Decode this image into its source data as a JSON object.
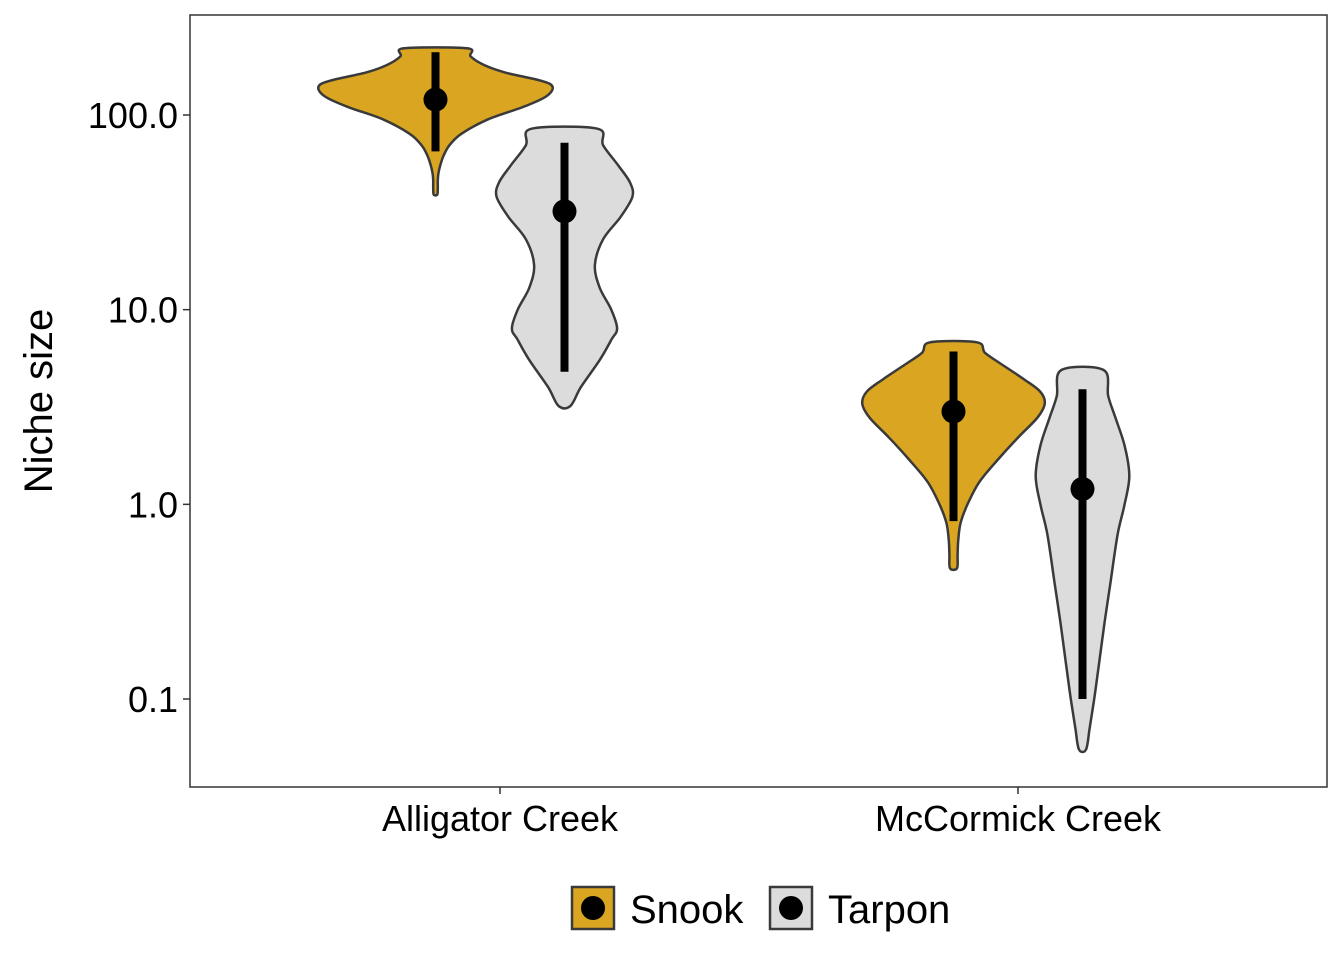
{
  "chart_data": {
    "type": "violin",
    "title": "",
    "xlabel": "",
    "ylabel": "Niche size",
    "y_scale": "log10",
    "ylim": [
      0.037,
      320
    ],
    "y_ticks": [
      0.1,
      1,
      10,
      100
    ],
    "y_tick_labels": [
      "0.1",
      "1.0",
      "10.0",
      "100.0"
    ],
    "categories": [
      "Alligator Creek",
      "McCormick Creek"
    ],
    "grid": false,
    "legend": {
      "position": "bottom",
      "marker": "filled-circle-in-box"
    },
    "colors": {
      "Snook": "#DAA520",
      "Tarpon": "#DCDCDC",
      "outline": "#3A3A3A",
      "point": "#000000"
    },
    "series": [
      {
        "name": "Snook",
        "violins": [
          {
            "category": "Alligator Creek",
            "min": 39,
            "max": 220,
            "median": 120,
            "interval": [
              65,
              210
            ],
            "density": [
              [
                39,
                0.015
              ],
              [
                42,
                0.02
              ],
              [
                46,
                0.02
              ],
              [
                50,
                0.025
              ],
              [
                55,
                0.04
              ],
              [
                62,
                0.07
              ],
              [
                70,
                0.12
              ],
              [
                80,
                0.22
              ],
              [
                95,
                0.45
              ],
              [
                110,
                0.75
              ],
              [
                125,
                0.95
              ],
              [
                140,
                1.0
              ],
              [
                150,
                0.9
              ],
              [
                165,
                0.6
              ],
              [
                180,
                0.42
              ],
              [
                200,
                0.3
              ],
              [
                220,
                0.27
              ]
            ]
          },
          {
            "category": "McCormick Creek",
            "min": 0.47,
            "max": 6.8,
            "median": 3.0,
            "interval": [
              0.82,
              6.1
            ],
            "density": [
              [
                0.47,
                0.03
              ],
              [
                0.55,
                0.035
              ],
              [
                0.65,
                0.04
              ],
              [
                0.8,
                0.06
              ],
              [
                1.0,
                0.12
              ],
              [
                1.3,
                0.22
              ],
              [
                1.7,
                0.38
              ],
              [
                2.2,
                0.55
              ],
              [
                2.8,
                0.72
              ],
              [
                3.3,
                0.78
              ],
              [
                3.8,
                0.74
              ],
              [
                4.4,
                0.6
              ],
              [
                5.2,
                0.42
              ],
              [
                6.0,
                0.27
              ],
              [
                6.8,
                0.2
              ]
            ]
          }
        ]
      },
      {
        "name": "Tarpon",
        "violins": [
          {
            "category": "Alligator Creek",
            "min": 3.2,
            "max": 85,
            "median": 32,
            "interval": [
              4.8,
              72
            ],
            "density": [
              [
                3.2,
                0.05
              ],
              [
                4,
                0.14
              ],
              [
                5.5,
                0.3
              ],
              [
                7,
                0.4
              ],
              [
                8,
                0.45
              ],
              [
                10,
                0.4
              ],
              [
                13,
                0.3
              ],
              [
                17,
                0.26
              ],
              [
                23,
                0.33
              ],
              [
                30,
                0.48
              ],
              [
                38,
                0.58
              ],
              [
                45,
                0.56
              ],
              [
                55,
                0.46
              ],
              [
                70,
                0.33
              ],
              [
                85,
                0.28
              ]
            ]
          },
          {
            "category": "McCormick Creek",
            "min": 0.055,
            "max": 4.9,
            "median": 1.2,
            "interval": [
              0.1,
              3.9
            ],
            "density": [
              [
                0.055,
                0.03
              ],
              [
                0.07,
                0.06
              ],
              [
                0.1,
                0.1
              ],
              [
                0.15,
                0.14
              ],
              [
                0.25,
                0.19
              ],
              [
                0.4,
                0.24
              ],
              [
                0.7,
                0.3
              ],
              [
                1.0,
                0.36
              ],
              [
                1.4,
                0.4
              ],
              [
                2.0,
                0.36
              ],
              [
                2.8,
                0.28
              ],
              [
                3.6,
                0.22
              ],
              [
                4.9,
                0.18
              ]
            ]
          }
        ]
      }
    ]
  }
}
